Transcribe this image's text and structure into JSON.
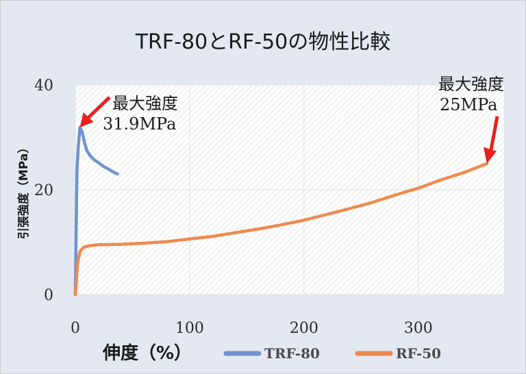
{
  "chart_data": {
    "type": "line",
    "title": "TRF-80とRF-50の物性比較",
    "xlabel": "伸度（%）",
    "ylabel": "引張強度（MPa）",
    "xlim": [
      0,
      375
    ],
    "ylim": [
      0,
      40
    ],
    "x_ticks": [
      "0",
      "100",
      "200",
      "300"
    ],
    "y_ticks": [
      "0",
      "20",
      "40"
    ],
    "grid": true,
    "legend_position": "bottom",
    "series": [
      {
        "name": "TRF-80",
        "color": "#6f93cf",
        "points": [
          [
            0,
            0
          ],
          [
            0.5,
            8
          ],
          [
            1,
            18
          ],
          [
            1.5,
            24
          ],
          [
            2.5,
            28
          ],
          [
            4,
            31.9
          ],
          [
            6,
            31
          ],
          [
            8,
            29
          ],
          [
            10,
            27.5
          ],
          [
            13,
            26.5
          ],
          [
            16,
            25.8
          ],
          [
            20,
            25.2
          ],
          [
            25,
            24.4
          ],
          [
            30,
            23.8
          ],
          [
            34,
            23.3
          ],
          [
            37,
            23
          ]
        ]
      },
      {
        "name": "RF-50",
        "color": "#ee8a4e",
        "points": [
          [
            0,
            0
          ],
          [
            1,
            3
          ],
          [
            2,
            6
          ],
          [
            4,
            8.2
          ],
          [
            7,
            9
          ],
          [
            12,
            9.3
          ],
          [
            20,
            9.5
          ],
          [
            40,
            9.6
          ],
          [
            60,
            9.8
          ],
          [
            80,
            10.1
          ],
          [
            100,
            10.6
          ],
          [
            120,
            11.1
          ],
          [
            140,
            11.8
          ],
          [
            160,
            12.5
          ],
          [
            180,
            13.3
          ],
          [
            200,
            14.2
          ],
          [
            220,
            15.3
          ],
          [
            240,
            16.4
          ],
          [
            260,
            17.6
          ],
          [
            280,
            19
          ],
          [
            300,
            20.3
          ],
          [
            320,
            21.9
          ],
          [
            340,
            23.3
          ],
          [
            360,
            25
          ]
        ]
      }
    ],
    "annotations": [
      {
        "lines": [
          "最大強度",
          "31.9MPa"
        ],
        "target": [
          4,
          31.9
        ]
      },
      {
        "lines": [
          "最大強度",
          "25MPa"
        ],
        "target": [
          360,
          25
        ]
      }
    ],
    "annotation_arrow_color": "#e8201e"
  }
}
